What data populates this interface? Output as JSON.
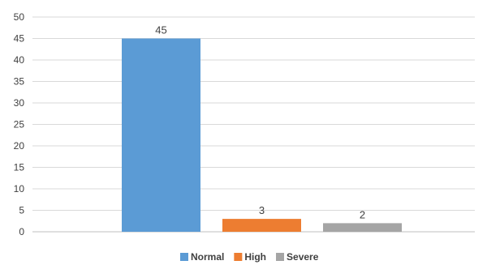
{
  "chart_data": {
    "type": "bar",
    "title": "",
    "xlabel": "",
    "ylabel": "",
    "ylim": [
      0,
      50
    ],
    "yticks": [
      0,
      5,
      10,
      15,
      20,
      25,
      30,
      35,
      40,
      45,
      50
    ],
    "grid": true,
    "legend_position": "bottom",
    "series": [
      {
        "name": "Normal",
        "value": 45,
        "color": "#5B9BD5"
      },
      {
        "name": "High",
        "value": 3,
        "color": "#ED7D31"
      },
      {
        "name": "Severe",
        "value": 2,
        "color": "#A5A5A5"
      }
    ]
  }
}
